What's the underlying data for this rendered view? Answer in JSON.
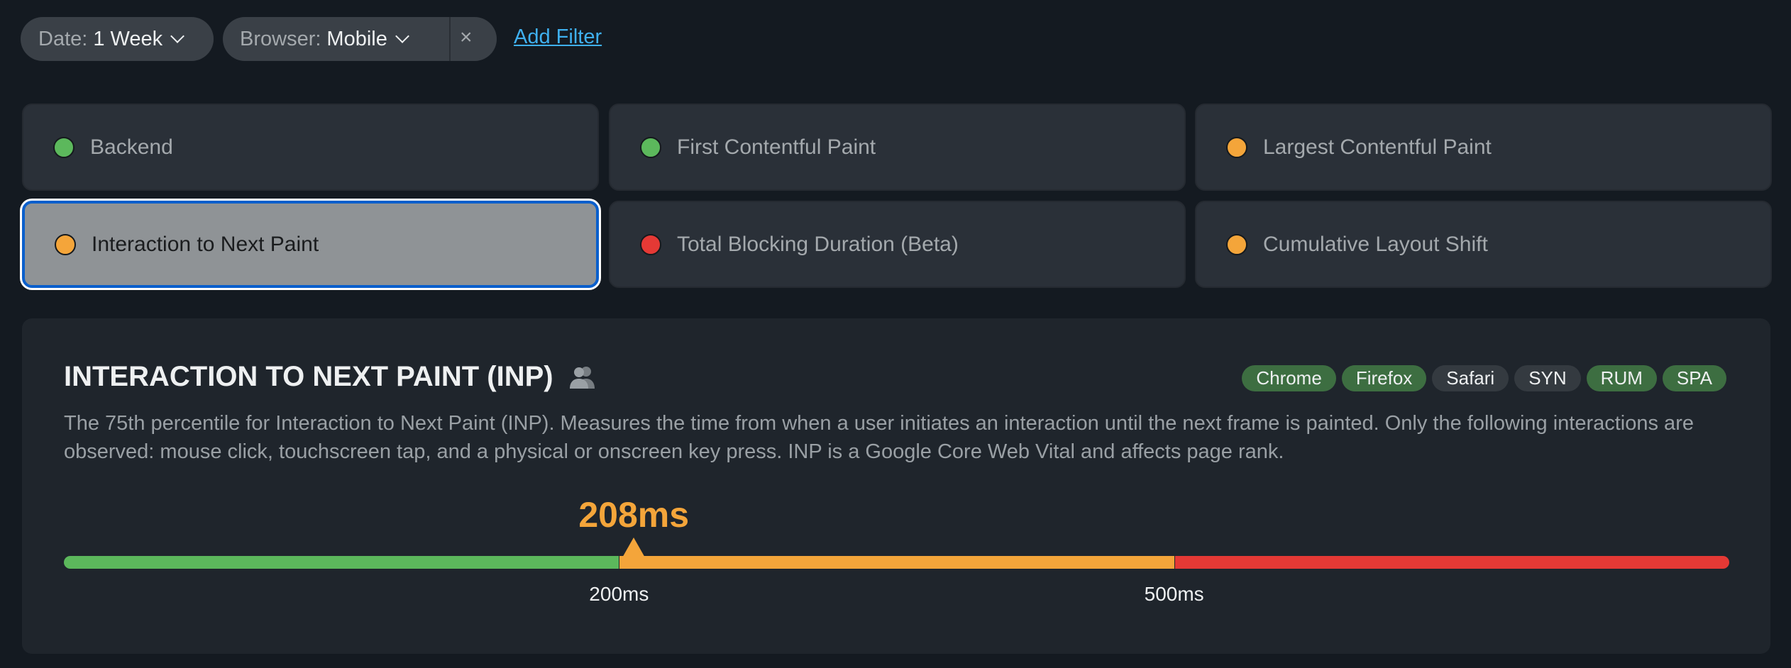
{
  "filters": [
    {
      "label": "Date:",
      "value": "1 Week"
    },
    {
      "label": "Browser:",
      "value": "Mobile",
      "clear_icon": "×"
    }
  ],
  "add_filter": "Add Filter",
  "metrics": [
    {
      "label": "Backend",
      "status": "good"
    },
    {
      "label": "First Contentful Paint",
      "status": "good"
    },
    {
      "label": "Largest Contentful Paint",
      "status": "needs-improvement"
    },
    {
      "label": "Interaction to Next Paint",
      "status": "needs-improvement",
      "selected": true
    },
    {
      "label": "Total Blocking Duration (Beta)",
      "status": "poor"
    },
    {
      "label": "Cumulative Layout Shift",
      "status": "needs-improvement"
    }
  ],
  "colors": {
    "good": "#5cb85c",
    "needs-improvement": "#f4a53a",
    "poor": "#e53935",
    "tag_on": "#3d6e41",
    "tag_off": "#343a40"
  },
  "detail": {
    "title": "INTERACTION TO NEXT PAINT (INP)",
    "icon": "users-icon",
    "tags": [
      {
        "label": "Chrome",
        "on": true
      },
      {
        "label": "Firefox",
        "on": true
      },
      {
        "label": "Safari",
        "on": false
      },
      {
        "label": "SYN",
        "on": false
      },
      {
        "label": "RUM",
        "on": true
      },
      {
        "label": "SPA",
        "on": true
      }
    ],
    "description": "The 75th percentile for Interaction to Next Paint (INP). Measures the time from when a user initiates an interaction until the next frame is painted. Only the following interactions are observed: mouse click, touchscreen tap, and a physical or onscreen key press. INP is a Google Core Web Vital and affects page rank.",
    "value_ms": 208,
    "value_label": "208ms",
    "thresholds": [
      {
        "ms": 200,
        "label": "200ms"
      },
      {
        "ms": 500,
        "label": "500ms"
      }
    ]
  }
}
